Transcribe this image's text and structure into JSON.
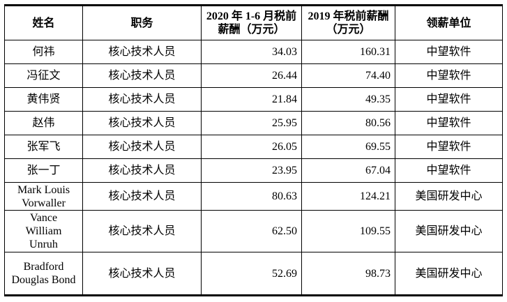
{
  "table": {
    "header": [
      "姓名",
      "职务",
      "2020 年 1-6 月税前薪酬（万元）",
      "2019 年税前薪酬（万元）",
      "领薪单位"
    ],
    "rows": [
      [
        "何祎",
        "核心技术人员",
        "34.03",
        "160.31",
        "中望软件"
      ],
      [
        "冯征文",
        "核心技术人员",
        "26.44",
        "74.40",
        "中望软件"
      ],
      [
        "黄伟贤",
        "核心技术人员",
        "21.84",
        "49.35",
        "中望软件"
      ],
      [
        "赵伟",
        "核心技术人员",
        "25.95",
        "80.56",
        "中望软件"
      ],
      [
        "张军飞",
        "核心技术人员",
        "26.05",
        "69.55",
        "中望软件"
      ],
      [
        "张一丁",
        "核心技术人员",
        "23.95",
        "67.04",
        "中望软件"
      ],
      [
        "Mark Louis Vorwaller",
        "核心技术人员",
        "80.63",
        "124.21",
        "美国研发中心"
      ],
      [
        "Vance William Unruh",
        "核心技术人员",
        "62.50",
        "109.55",
        "美国研发中心"
      ],
      [
        "Bradford Douglas Bond",
        "核心技术人员",
        "52.69",
        "98.73",
        "美国研发中心"
      ]
    ]
  }
}
